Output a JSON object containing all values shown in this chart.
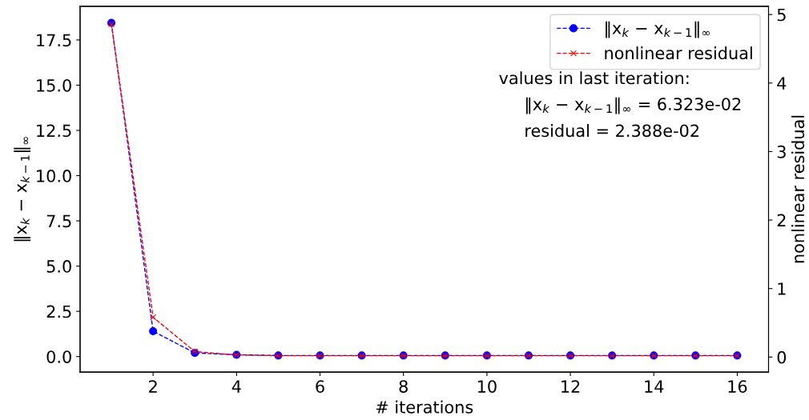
{
  "chart_data": {
    "type": "line",
    "xlabel": "# iterations",
    "ylabel": "‖x$_{k}$ − x$_{k−1}$‖$_{∞}$",
    "y2label": "nonlinear residual",
    "x": [
      1,
      2,
      3,
      4,
      5,
      6,
      7,
      8,
      9,
      10,
      11,
      12,
      13,
      14,
      15,
      16
    ],
    "series": [
      {
        "name": "‖x$_{k}$ − x$_{k−1}$‖$_{∞}$",
        "color": "#0000ff",
        "marker": "circle",
        "line_style": "dashed",
        "values": [
          18.45,
          1.4,
          0.2,
          0.1,
          0.06,
          0.06,
          0.06,
          0.06,
          0.06,
          0.06,
          0.06,
          0.06,
          0.06,
          0.06,
          0.06,
          0.06
        ]
      },
      {
        "name": "nonlinear residual",
        "color": "#ff0000",
        "marker": "cross",
        "line_style": "dashed",
        "axis": "y2",
        "values": [
          4.86,
          0.58,
          0.08,
          0.03,
          0.02,
          0.02,
          0.02,
          0.02,
          0.02,
          0.02,
          0.02,
          0.02,
          0.02,
          0.02,
          0.02,
          0.02
        ]
      }
    ],
    "xlim": [
      0.25,
      16.75
    ],
    "xticks": [
      2,
      4,
      6,
      8,
      10,
      12,
      14,
      16
    ],
    "ylim": [
      -0.86,
      19.36
    ],
    "yticks": [
      {
        "value": 0,
        "label": "0.0"
      },
      {
        "value": 2.5,
        "label": "2.5"
      },
      {
        "value": 5,
        "label": "5.0"
      },
      {
        "value": 7.5,
        "label": "7.5"
      },
      {
        "value": 10,
        "label": "10.0"
      },
      {
        "value": 12.5,
        "label": "12.5"
      },
      {
        "value": 15,
        "label": "15.0"
      },
      {
        "value": 17.5,
        "label": "17.5"
      }
    ],
    "y2lim": [
      -0.22,
      5.12
    ],
    "y2ticks": [
      0,
      1,
      2,
      3,
      4,
      5
    ],
    "annotations": [
      "values in last iteration:",
      "‖x$_{k}$ − x$_{k−1}$‖$_{∞}$ = 6.323e-02",
      "residual = 2.388e-02"
    ],
    "legend": "top right",
    "grid": false
  }
}
